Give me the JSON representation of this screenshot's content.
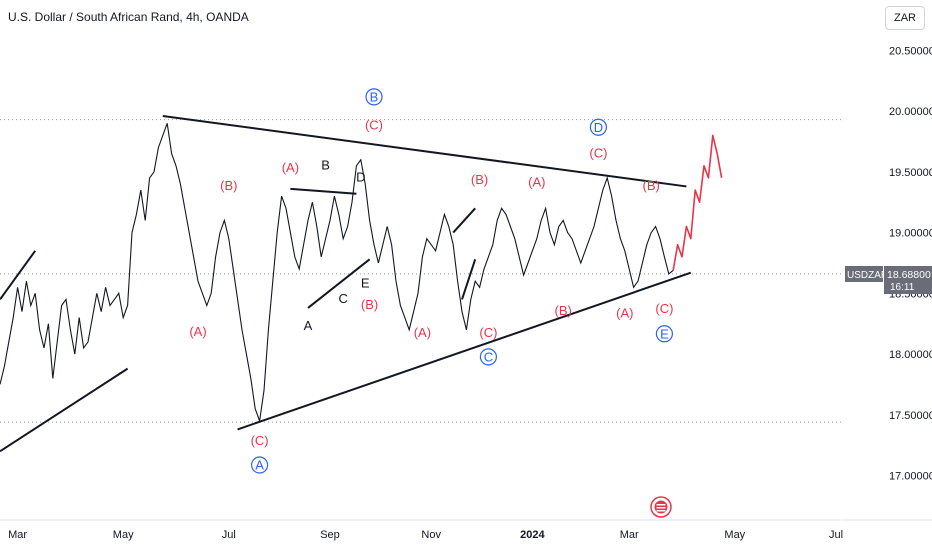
{
  "header": {
    "title": "U.S. Dollar / South African Rand, 4h, OANDA",
    "currency": "ZAR"
  },
  "price_tag": {
    "symbol": "USDZAR",
    "price": "18.68800",
    "countdown": "16:11"
  },
  "colors": {
    "price_line": "#131722",
    "trendline": "#131722",
    "projection": "#e8354a",
    "wave_red": "#e8354a",
    "wave_blue": "#2962ff",
    "tag_bg": "#6a6d78"
  },
  "chart_data": {
    "type": "line",
    "ylim": [
      16.7,
      20.75
    ],
    "y_ticks": [
      "20.50000",
      "20.00000",
      "19.50000",
      "19.00000",
      "18.50000",
      "18.00000",
      "17.50000",
      "17.00000"
    ],
    "y_tick_values": [
      20.5,
      20.0,
      19.5,
      19.0,
      18.5,
      18.0,
      17.5,
      17.0
    ],
    "x_ticks": [
      "Mar",
      "May",
      "Jul",
      "Sep",
      "Nov",
      "2024",
      "Mar",
      "May",
      "Jul"
    ],
    "x_tick_index": [
      4,
      28,
      52,
      75,
      98,
      121,
      143,
      167,
      190
    ],
    "dotted_levels": [
      19.93,
      18.66,
      17.44
    ],
    "last_price": 18.688,
    "series": [
      {
        "values": [
          17.75,
          17.9,
          18.1,
          18.3,
          18.55,
          18.35,
          18.6,
          18.4,
          18.5,
          18.2,
          18.05,
          18.25,
          17.8,
          18.1,
          18.4,
          18.45,
          18.2,
          18.0,
          18.3,
          18.05,
          18.1,
          18.3,
          18.5,
          18.35,
          18.55,
          18.4,
          18.45,
          18.5,
          18.3,
          18.4,
          19.0,
          19.15,
          19.35,
          19.1,
          19.45,
          19.5,
          19.7,
          19.8,
          19.9,
          19.65,
          19.55,
          19.4,
          19.2,
          19.0,
          18.8,
          18.6,
          18.5,
          18.4,
          18.5,
          18.8,
          19.0,
          19.1,
          18.95,
          18.7,
          18.45,
          18.2,
          18.0,
          17.8,
          17.55,
          17.45,
          17.7,
          18.2,
          18.6,
          19.0,
          19.3,
          19.2,
          19.0,
          18.8,
          18.7,
          18.9,
          19.1,
          19.25,
          19.05,
          18.8,
          18.95,
          19.1,
          19.3,
          19.15,
          18.95,
          19.05,
          19.25,
          19.55,
          19.6,
          19.4,
          19.1,
          18.9,
          18.75,
          18.9,
          19.05,
          18.9,
          18.6,
          18.4,
          18.3,
          18.2,
          18.35,
          18.5,
          18.8,
          18.95,
          18.9,
          18.85,
          19.0,
          19.15,
          19.05,
          18.9,
          18.6,
          18.35,
          18.2,
          18.45,
          18.6,
          18.55,
          18.7,
          18.8,
          18.9,
          19.1,
          19.2,
          19.15,
          19.05,
          18.95,
          18.8,
          18.65,
          18.75,
          18.85,
          18.95,
          19.1,
          19.2,
          19.0,
          18.9,
          19.05,
          19.1,
          19.0,
          18.95,
          18.85,
          18.75,
          18.85,
          18.95,
          19.05,
          19.2,
          19.35,
          19.45,
          19.3,
          19.1,
          18.95,
          18.85,
          18.7,
          18.55,
          18.6,
          18.75,
          18.9,
          19.0,
          19.05,
          18.95,
          18.8,
          18.66,
          18.69
        ]
      }
    ],
    "projection": [
      [
        153,
        18.69
      ],
      [
        154,
        18.9
      ],
      [
        155,
        18.8
      ],
      [
        156,
        19.05
      ],
      [
        157,
        18.95
      ],
      [
        158,
        19.35
      ],
      [
        159,
        19.25
      ],
      [
        160,
        19.55
      ],
      [
        161,
        19.45
      ],
      [
        162,
        19.8
      ],
      [
        163,
        19.65
      ],
      [
        164,
        19.45
      ]
    ],
    "trendlines": [
      {
        "from": [
          37,
          19.96
        ],
        "to": [
          156,
          19.38
        ]
      },
      {
        "from": [
          54,
          17.38
        ],
        "to": [
          157,
          18.67
        ]
      },
      {
        "from": [
          0,
          17.2
        ],
        "to": [
          29,
          17.88
        ]
      },
      {
        "from": [
          0,
          18.45
        ],
        "to": [
          8,
          18.85
        ]
      },
      {
        "from": [
          66,
          19.36
        ],
        "to": [
          81,
          19.32
        ]
      },
      {
        "from": [
          70,
          18.38
        ],
        "to": [
          84,
          18.78
        ]
      },
      {
        "from": [
          103,
          19.0
        ],
        "to": [
          108,
          19.2
        ]
      },
      {
        "from": [
          105,
          18.45
        ],
        "to": [
          108,
          18.78
        ]
      }
    ],
    "wave_labels": [
      {
        "text": "(A)",
        "x": 45,
        "y": 18.15,
        "color": "red"
      },
      {
        "text": "(B)",
        "x": 52,
        "y": 19.35,
        "color": "red"
      },
      {
        "text": "(C)",
        "x": 59,
        "y": 17.25,
        "color": "red"
      },
      {
        "text": "A",
        "x": 59,
        "y": 17.05,
        "color": "blue",
        "circle": true
      },
      {
        "text": "(A)",
        "x": 66,
        "y": 19.5,
        "color": "red"
      },
      {
        "text": "B",
        "x": 74,
        "y": 19.52,
        "color": "black"
      },
      {
        "text": "D",
        "x": 82,
        "y": 19.42,
        "color": "black"
      },
      {
        "text": "A",
        "x": 70,
        "y": 18.2,
        "color": "black"
      },
      {
        "text": "C",
        "x": 78,
        "y": 18.42,
        "color": "black"
      },
      {
        "text": "E",
        "x": 83,
        "y": 18.55,
        "color": "black"
      },
      {
        "text": "(B)",
        "x": 84,
        "y": 18.37,
        "color": "red"
      },
      {
        "text": "(C)",
        "x": 85,
        "y": 19.85,
        "color": "red"
      },
      {
        "text": "B",
        "x": 85,
        "y": 20.08,
        "color": "blue",
        "circle": true
      },
      {
        "text": "(A)",
        "x": 96,
        "y": 18.14,
        "color": "red"
      },
      {
        "text": "(B)",
        "x": 109,
        "y": 19.4,
        "color": "red"
      },
      {
        "text": "(C)",
        "x": 111,
        "y": 18.14,
        "color": "red"
      },
      {
        "text": "C",
        "x": 111,
        "y": 17.94,
        "color": "blue",
        "circle": true
      },
      {
        "text": "(A)",
        "x": 122,
        "y": 19.38,
        "color": "red"
      },
      {
        "text": "(B)",
        "x": 128,
        "y": 18.32,
        "color": "red"
      },
      {
        "text": "(C)",
        "x": 136,
        "y": 19.62,
        "color": "red"
      },
      {
        "text": "D",
        "x": 136,
        "y": 19.83,
        "color": "blue",
        "circle": true
      },
      {
        "text": "(B)",
        "x": 148,
        "y": 19.35,
        "color": "red"
      },
      {
        "text": "(A)",
        "x": 142,
        "y": 18.3,
        "color": "red"
      },
      {
        "text": "(C)",
        "x": 151,
        "y": 18.34,
        "color": "red"
      },
      {
        "text": "E",
        "x": 151,
        "y": 18.13,
        "color": "blue",
        "circle": true
      }
    ]
  }
}
